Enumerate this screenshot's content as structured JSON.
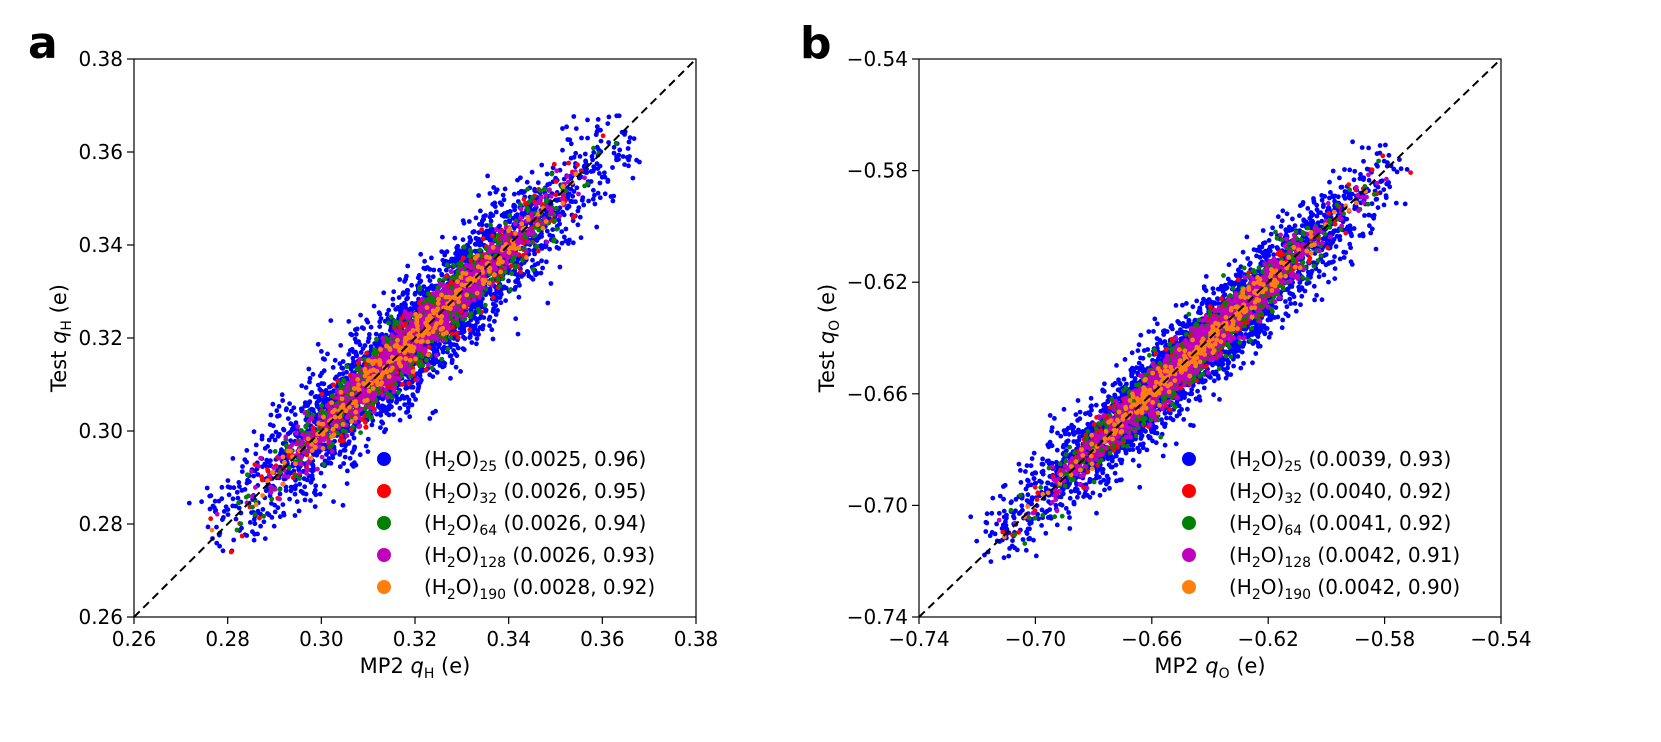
{
  "chart_data": [
    {
      "type": "scatter",
      "panel_label": "a",
      "xlabel": {
        "prefix": "MP2 ",
        "var": "q",
        "sub": "H",
        "suffix": " (e)"
      },
      "ylabel": {
        "prefix": "Test ",
        "var": "q",
        "sub": "H",
        "suffix": " (e)"
      },
      "xlim": [
        0.26,
        0.38
      ],
      "ylim": [
        0.26,
        0.38
      ],
      "xticks": [
        0.26,
        0.28,
        0.3,
        0.32,
        0.34,
        0.36,
        0.38
      ],
      "yticks": [
        0.26,
        0.28,
        0.3,
        0.32,
        0.34,
        0.36,
        0.38
      ],
      "tick_labels": [
        "0.26",
        "0.28",
        "0.30",
        "0.32",
        "0.34",
        "0.36",
        "0.38"
      ],
      "diagonal": "y = x (dashed black)",
      "legend_position": "lower-right",
      "center_range": [
        0.278,
        0.364
      ],
      "series": [
        {
          "name": "(H2O)25",
          "base": "(H",
          "sub1": "2",
          "mid": "O)",
          "sub2": "25",
          "stats": " (0.0025, 0.96)",
          "rmse": 0.0025,
          "r2": 0.96,
          "color": "#0000ff"
        },
        {
          "name": "(H2O)32",
          "base": "(H",
          "sub1": "2",
          "mid": "O)",
          "sub2": "32",
          "stats": " (0.0026, 0.95)",
          "rmse": 0.0026,
          "r2": 0.95,
          "color": "#ff0000"
        },
        {
          "name": "(H2O)64",
          "base": "(H",
          "sub1": "2",
          "mid": "O)",
          "sub2": "64",
          "stats": " (0.0026, 0.94)",
          "rmse": 0.0026,
          "r2": 0.94,
          "color": "#008000"
        },
        {
          "name": "(H2O)128",
          "base": "(H",
          "sub1": "2",
          "mid": "O)",
          "sub2": "128",
          "stats": " (0.0026, 0.93)",
          "rmse": 0.0026,
          "r2": 0.93,
          "color": "#bf00bf"
        },
        {
          "name": "(H2O)190",
          "base": "(H",
          "sub1": "2",
          "mid": "O)",
          "sub2": "190",
          "stats": " (0.0028, 0.92)",
          "rmse": 0.0028,
          "r2": 0.92,
          "color": "#ff7f0e"
        }
      ]
    },
    {
      "type": "scatter",
      "panel_label": "b",
      "xlabel": {
        "prefix": "MP2 ",
        "var": "q",
        "sub": "O",
        "suffix": " (e)"
      },
      "ylabel": {
        "prefix": "Test ",
        "var": "q",
        "sub": "O",
        "suffix": " (e)"
      },
      "xlim": [
        -0.74,
        -0.54
      ],
      "ylim": [
        -0.74,
        -0.54
      ],
      "xticks": [
        -0.74,
        -0.7,
        -0.66,
        -0.62,
        -0.58,
        -0.54
      ],
      "yticks": [
        -0.74,
        -0.7,
        -0.66,
        -0.62,
        -0.58,
        -0.54
      ],
      "tick_labels": [
        "−0.74",
        "−0.70",
        "−0.66",
        "−0.62",
        "−0.58",
        "−0.54"
      ],
      "diagonal": "y = x (dashed black)",
      "legend_position": "lower-right",
      "center_range": [
        -0.715,
        -0.578
      ],
      "series": [
        {
          "name": "(H2O)25",
          "base": "(H",
          "sub1": "2",
          "mid": "O)",
          "sub2": "25",
          "stats": " (0.0039, 0.93)",
          "rmse": 0.0039,
          "r2": 0.93,
          "color": "#0000ff"
        },
        {
          "name": "(H2O)32",
          "base": "(H",
          "sub1": "2",
          "mid": "O)",
          "sub2": "32",
          "stats": " (0.0040, 0.92)",
          "rmse": 0.004,
          "r2": 0.92,
          "color": "#ff0000"
        },
        {
          "name": "(H2O)64",
          "base": "(H",
          "sub1": "2",
          "mid": "O)",
          "sub2": "64",
          "stats": " (0.0041, 0.92)",
          "rmse": 0.0041,
          "r2": 0.92,
          "color": "#008000"
        },
        {
          "name": "(H2O)128",
          "base": "(H",
          "sub1": "2",
          "mid": "O)",
          "sub2": "128",
          "stats": " (0.0042, 0.91)",
          "rmse": 0.0042,
          "r2": 0.91,
          "color": "#bf00bf"
        },
        {
          "name": "(H2O)190",
          "base": "(H",
          "sub1": "2",
          "mid": "O)",
          "sub2": "190",
          "stats": " (0.0042, 0.90)",
          "rmse": 0.0042,
          "r2": 0.9,
          "color": "#ff7f0e"
        }
      ]
    }
  ]
}
